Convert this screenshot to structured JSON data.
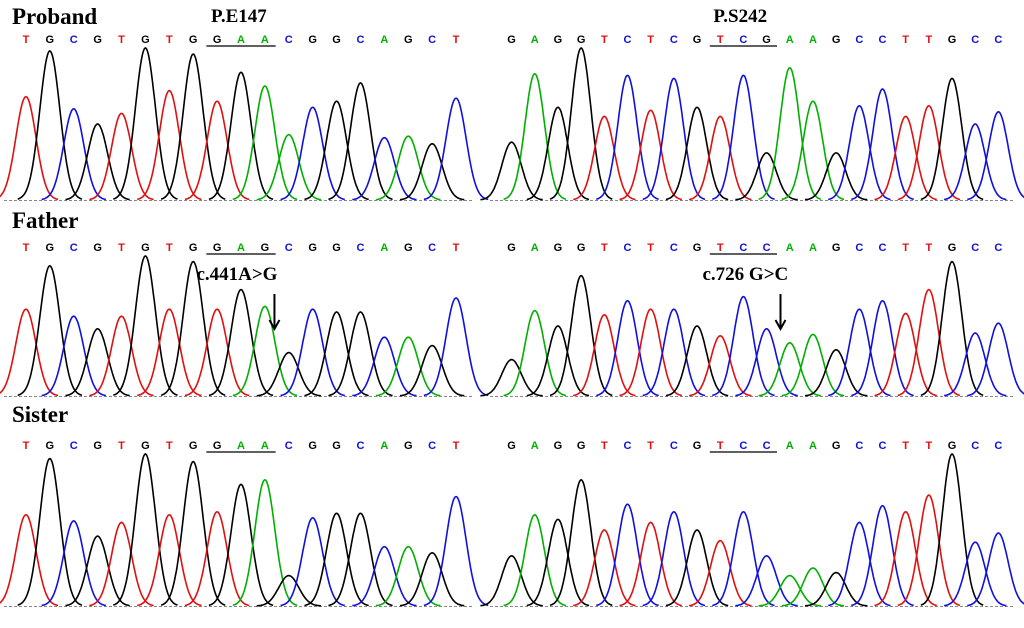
{
  "colors": {
    "A": "#00b000",
    "C": "#1010e0",
    "G": "#000000",
    "T": "#e01010"
  },
  "rows": [
    {
      "label": "Proband",
      "panels": [
        {
          "title": "P.E147",
          "mutation": "",
          "bases": [
            "T",
            "G",
            "C",
            "G",
            "T",
            "G",
            "T",
            "G",
            "G",
            "A",
            "A",
            "C",
            "G",
            "G",
            "C",
            "A",
            "G",
            "C",
            "T"
          ],
          "codon": [
            8,
            10
          ],
          "peaks": [
            [
              "T",
              0.68
            ],
            [
              "G",
              0.98
            ],
            [
              "C",
              0.6
            ],
            [
              "G",
              0.5
            ],
            [
              "T",
              0.57
            ],
            [
              "G",
              1.0
            ],
            [
              "T",
              0.72
            ],
            [
              "G",
              0.96
            ],
            [
              "T",
              0.65
            ],
            [
              "G",
              0.84
            ],
            [
              "A",
              0.75
            ],
            [
              "A",
              0.43
            ],
            [
              "C",
              0.61
            ],
            [
              "G",
              0.65
            ],
            [
              "G",
              0.77
            ],
            [
              "C",
              0.41
            ],
            [
              "A",
              0.42
            ],
            [
              "G",
              0.37
            ],
            [
              "C",
              0.67
            ]
          ]
        },
        {
          "title": "P.S242",
          "mutation": "",
          "bases": [
            "G",
            "A",
            "G",
            "G",
            "T",
            "C",
            "T",
            "C",
            "G",
            "T",
            "C",
            "G",
            "A",
            "A",
            "G",
            "C",
            "C",
            "T",
            "T",
            "G",
            "C",
            "C"
          ],
          "codon": [
            9,
            11
          ],
          "peaks": [
            [
              "G",
              0.38
            ],
            [
              "A",
              0.83
            ],
            [
              "G",
              0.61
            ],
            [
              "G",
              1.0
            ],
            [
              "T",
              0.55
            ],
            [
              "C",
              0.82
            ],
            [
              "T",
              0.59
            ],
            [
              "C",
              0.8
            ],
            [
              "G",
              0.61
            ],
            [
              "T",
              0.55
            ],
            [
              "C",
              0.82
            ],
            [
              "G",
              0.31
            ],
            [
              "A",
              0.87
            ],
            [
              "A",
              0.65
            ],
            [
              "G",
              0.31
            ],
            [
              "C",
              0.62
            ],
            [
              "C",
              0.73
            ],
            [
              "T",
              0.55
            ],
            [
              "T",
              0.62
            ],
            [
              "G",
              0.8
            ],
            [
              "C",
              0.5
            ],
            [
              "C",
              0.58
            ]
          ]
        }
      ]
    },
    {
      "label": "Father",
      "panels": [
        {
          "title": "",
          "mutation": "c.441A>G",
          "bases": [
            "T",
            "G",
            "C",
            "G",
            "T",
            "G",
            "T",
            "G",
            "G",
            "A",
            "G",
            "C",
            "G",
            "G",
            "C",
            "A",
            "G",
            "C",
            "T"
          ],
          "codon": [
            8,
            10
          ],
          "arrow_at": 10.4,
          "peaks": [
            [
              "T",
              0.62
            ],
            [
              "G",
              0.93
            ],
            [
              "C",
              0.57
            ],
            [
              "G",
              0.48
            ],
            [
              "T",
              0.57
            ],
            [
              "G",
              1.0
            ],
            [
              "T",
              0.62
            ],
            [
              "G",
              0.96
            ],
            [
              "T",
              0.62
            ],
            [
              "G",
              0.76
            ],
            [
              "A",
              0.64
            ],
            [
              "G",
              0.31
            ],
            [
              "C",
              0.62
            ],
            [
              "G",
              0.6
            ],
            [
              "G",
              0.6
            ],
            [
              "C",
              0.42
            ],
            [
              "A",
              0.42
            ],
            [
              "G",
              0.36
            ],
            [
              "C",
              0.7
            ]
          ]
        },
        {
          "title": "",
          "mutation": "c.726 G>C",
          "bases": [
            "G",
            "A",
            "G",
            "G",
            "T",
            "C",
            "T",
            "C",
            "G",
            "T",
            "C",
            "C",
            "A",
            "A",
            "G",
            "C",
            "C",
            "T",
            "T",
            "G",
            "C",
            "C"
          ],
          "codon": [
            9,
            11
          ],
          "arrow_at": 11.6,
          "peaks": [
            [
              "G",
              0.26
            ],
            [
              "A",
              0.61
            ],
            [
              "G",
              0.5
            ],
            [
              "G",
              0.86
            ],
            [
              "T",
              0.58
            ],
            [
              "C",
              0.68
            ],
            [
              "T",
              0.62
            ],
            [
              "C",
              0.62
            ],
            [
              "G",
              0.5
            ],
            [
              "T",
              0.43
            ],
            [
              "C",
              0.71
            ],
            [
              "C",
              0.48
            ],
            [
              "A",
              0.38
            ],
            [
              "A",
              0.44
            ],
            [
              "G",
              0.33
            ],
            [
              "C",
              0.62
            ],
            [
              "C",
              0.68
            ],
            [
              "T",
              0.59
            ],
            [
              "T",
              0.76
            ],
            [
              "G",
              0.96
            ],
            [
              "C",
              0.45
            ],
            [
              "C",
              0.52
            ]
          ]
        }
      ]
    },
    {
      "label": "Sister",
      "panels": [
        {
          "title": "",
          "mutation": "",
          "bases": [
            "T",
            "G",
            "C",
            "G",
            "T",
            "G",
            "T",
            "G",
            "G",
            "A",
            "A",
            "C",
            "G",
            "G",
            "C",
            "A",
            "G",
            "C",
            "T"
          ],
          "codon": [
            8,
            10
          ],
          "peaks": [
            [
              "T",
              0.6
            ],
            [
              "G",
              0.97
            ],
            [
              "C",
              0.56
            ],
            [
              "G",
              0.46
            ],
            [
              "T",
              0.55
            ],
            [
              "G",
              1.0
            ],
            [
              "T",
              0.6
            ],
            [
              "G",
              0.95
            ],
            [
              "T",
              0.62
            ],
            [
              "G",
              0.8
            ],
            [
              "A",
              0.83
            ],
            [
              "G",
              0.2
            ],
            [
              "C",
              0.58
            ],
            [
              "G",
              0.61
            ],
            [
              "G",
              0.61
            ],
            [
              "C",
              0.39
            ],
            [
              "A",
              0.39
            ],
            [
              "G",
              0.35
            ],
            [
              "C",
              0.72
            ]
          ]
        },
        {
          "title": "",
          "mutation": "",
          "bases": [
            "G",
            "A",
            "G",
            "G",
            "T",
            "C",
            "T",
            "C",
            "G",
            "T",
            "C",
            "C",
            "A",
            "A",
            "G",
            "C",
            "C",
            "T",
            "T",
            "G",
            "C",
            "C"
          ],
          "codon": [
            9,
            11
          ],
          "peaks": [
            [
              "G",
              0.33
            ],
            [
              "A",
              0.6
            ],
            [
              "G",
              0.57
            ],
            [
              "G",
              0.83
            ],
            [
              "T",
              0.5
            ],
            [
              "C",
              0.67
            ],
            [
              "T",
              0.55
            ],
            [
              "C",
              0.62
            ],
            [
              "G",
              0.5
            ],
            [
              "T",
              0.43
            ],
            [
              "C",
              0.62
            ],
            [
              "C",
              0.33
            ],
            [
              "A",
              0.2
            ],
            [
              "A",
              0.25
            ],
            [
              "G",
              0.22
            ],
            [
              "C",
              0.55
            ],
            [
              "C",
              0.66
            ],
            [
              "T",
              0.62
            ],
            [
              "T",
              0.73
            ],
            [
              "G",
              1.0
            ],
            [
              "C",
              0.42
            ],
            [
              "C",
              0.48
            ]
          ]
        }
      ]
    }
  ]
}
